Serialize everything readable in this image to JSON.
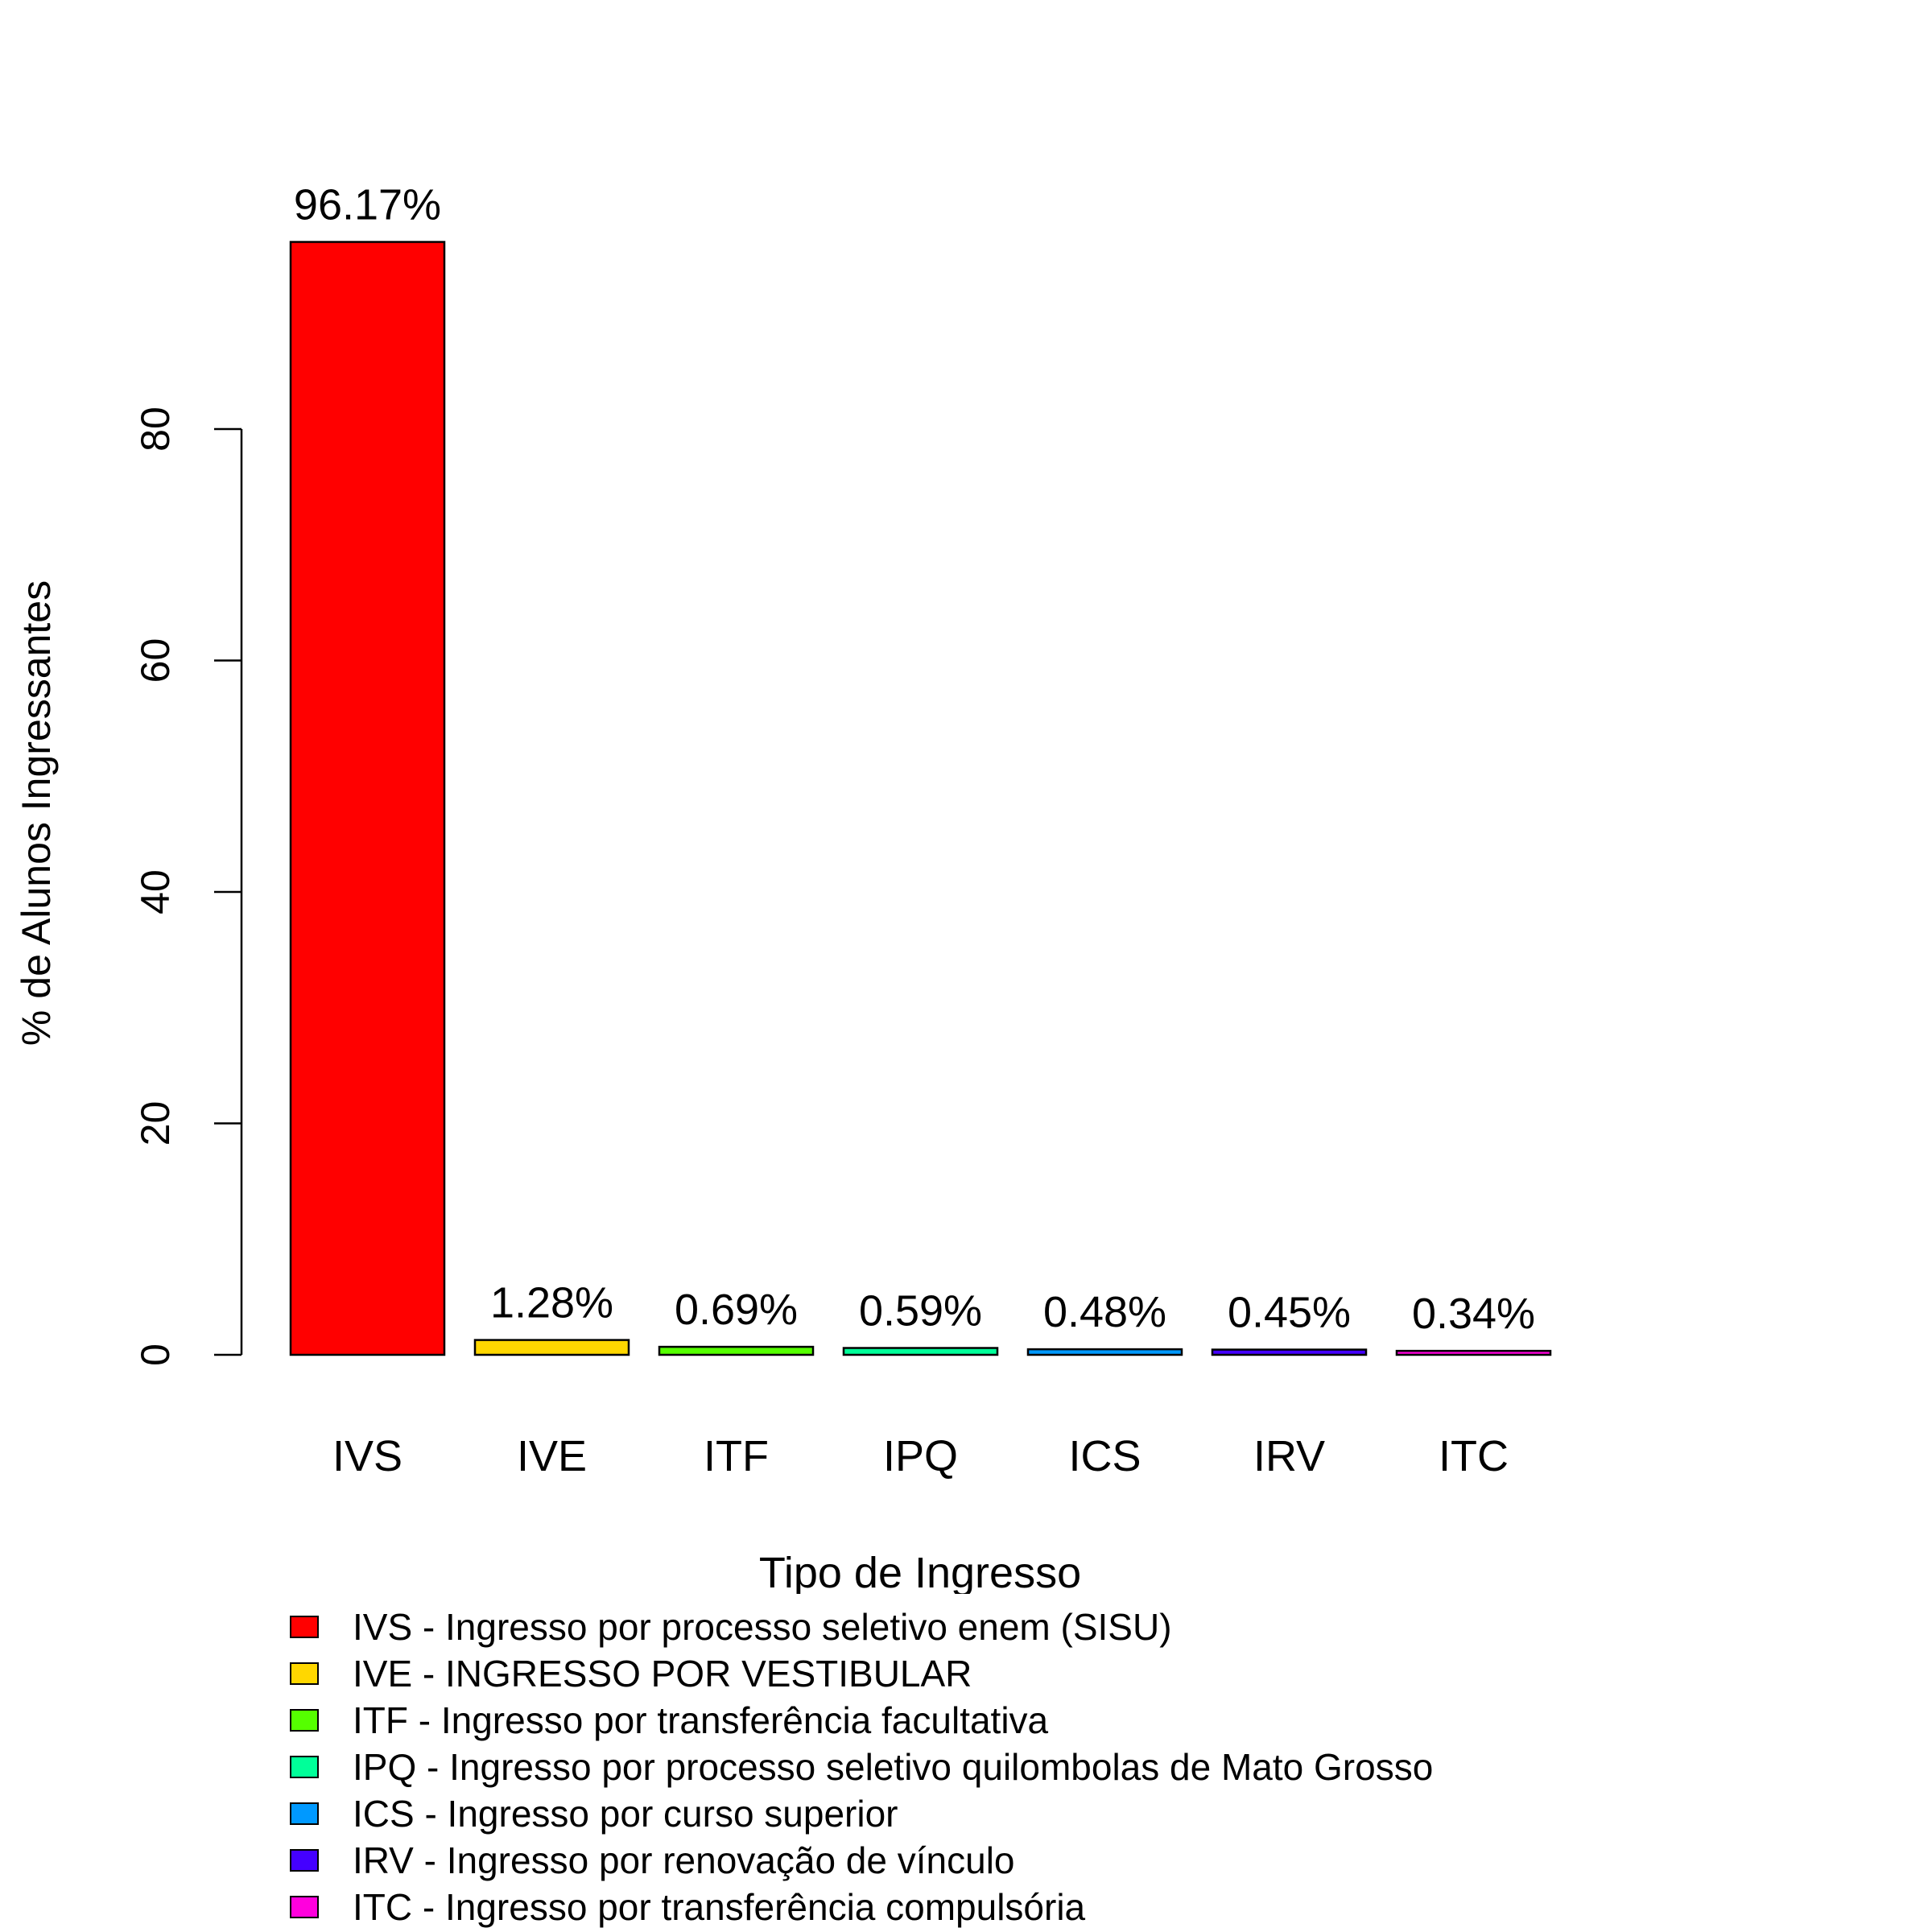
{
  "chart_data": {
    "type": "bar",
    "categories": [
      "IVS",
      "IVE",
      "ITF",
      "IPQ",
      "ICS",
      "IRV",
      "ITC"
    ],
    "values": [
      96.17,
      1.28,
      0.69,
      0.59,
      0.48,
      0.45,
      0.34
    ],
    "value_labels": [
      "96.17%",
      "1.28%",
      "0.69%",
      "0.59%",
      "0.48%",
      "0.45%",
      "0.34%"
    ],
    "colors": [
      "#FF0000",
      "#FFD700",
      "#55FF00",
      "#00FF99",
      "#0099FF",
      "#4400FF",
      "#FF00DD"
    ],
    "xlabel": "Tipo de Ingresso",
    "ylabel": "% de Alunos Ingressantes",
    "yticks": [
      0,
      20,
      40,
      60,
      80
    ],
    "ylim": [
      0,
      100
    ],
    "grid": false,
    "legend_position": "bottom",
    "legend": [
      "IVS - Ingresso por processo seletivo enem (SISU)",
      "IVE - INGRESSO POR VESTIBULAR",
      "ITF - Ingresso por transferência facultativa",
      "IPQ - Ingresso por processo seletivo quilombolas de Mato Grosso",
      "ICS - Ingresso por curso superior",
      "IRV - Ingresso por renovação de vínculo",
      "ITC - Ingresso por transferência compulsória"
    ]
  }
}
